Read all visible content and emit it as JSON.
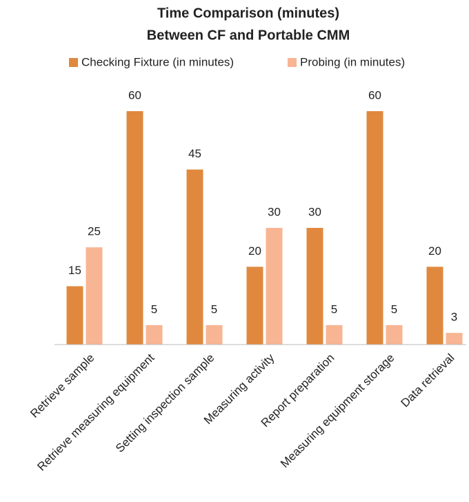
{
  "chart_data": {
    "type": "bar",
    "title": [
      "Time Comparison (minutes)",
      "Between CF and Portable CMM"
    ],
    "categories": [
      "Retrieve sample",
      "Retrieve measuring equipment",
      "Setting inspection sample",
      "Measuring activity",
      "Report preparation",
      "Measuring equipment storage",
      "Data retrieval"
    ],
    "series": [
      {
        "name": "Checking Fixture (in minutes)",
        "color": "#e0893e",
        "values": [
          15,
          60,
          45,
          20,
          30,
          60,
          20
        ]
      },
      {
        "name": "Probing (in minutes)",
        "color": "#f8b593",
        "values": [
          25,
          5,
          5,
          30,
          5,
          5,
          3
        ]
      }
    ],
    "ylim": [
      0,
      60
    ],
    "legend": "top"
  }
}
